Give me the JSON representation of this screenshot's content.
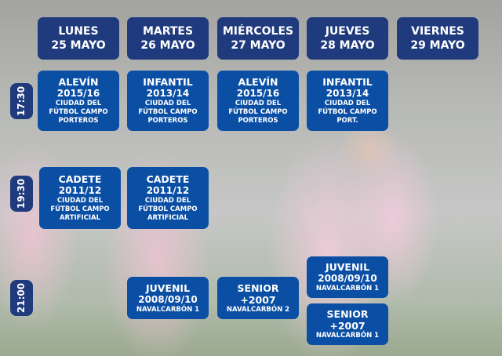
{
  "days": [
    {
      "day": "LUNES",
      "date": "25 MAYO"
    },
    {
      "day": "MARTES",
      "date": "26 MAYO"
    },
    {
      "day": "MIÉRCOLES",
      "date": "27 MAYO"
    },
    {
      "day": "JUEVES",
      "date": "28 MAYO"
    },
    {
      "day": "VIERNES",
      "date": "29 MAYO"
    }
  ],
  "times": [
    "17:30",
    "19:30",
    "21:00"
  ],
  "sessions": [
    {
      "category": "ALEVÍN",
      "years": "2015/16",
      "location": [
        "CIUDAD DEL",
        "FÚTBOL CAMPO",
        "PORTEROS"
      ]
    },
    {
      "category": "INFANTIL",
      "years": "2013/14",
      "location": [
        "CIUDAD DEL",
        "FÚTBOL CAMPO",
        "PORTEROS"
      ]
    },
    {
      "category": "ALEVÍN",
      "years": "2015/16",
      "location": [
        "CIUDAD DEL",
        "FÚTBOL CAMPO",
        "PORTEROS"
      ]
    },
    {
      "category": "INFANTIL",
      "years": "2013/14",
      "location": [
        "CIUDAD DEL",
        "FÚTBOL CAMPO",
        "PORT."
      ]
    },
    {
      "category": "CADETE",
      "years": "2011/12",
      "location": [
        "CIUDAD DEL",
        "FÚTBOL CAMPO",
        "ARTIFICIAL"
      ]
    },
    {
      "category": "CADETE",
      "years": "2011/12",
      "location": [
        "CIUDAD DEL",
        "FÚTBOL CAMPO",
        "ARTIFICIAL"
      ]
    },
    {
      "category": "JUVENIL",
      "years": "2008/09/10",
      "location": [
        "NAVALCARBÓN 1"
      ]
    },
    {
      "category": "SENIOR",
      "years": "+2007",
      "location": [
        "NAVALCARBÓN 2"
      ]
    },
    {
      "category": "JUVENIL",
      "years": "2008/09/10",
      "location": [
        "NAVALCARBÓN 1"
      ]
    },
    {
      "category": "SENIOR",
      "years": "+2007",
      "location": [
        "NAVALCARBÓN 1"
      ]
    }
  ],
  "colors": {
    "header": "#1f3a7d",
    "session": "#0b4fa5",
    "text": "#ffffff"
  }
}
